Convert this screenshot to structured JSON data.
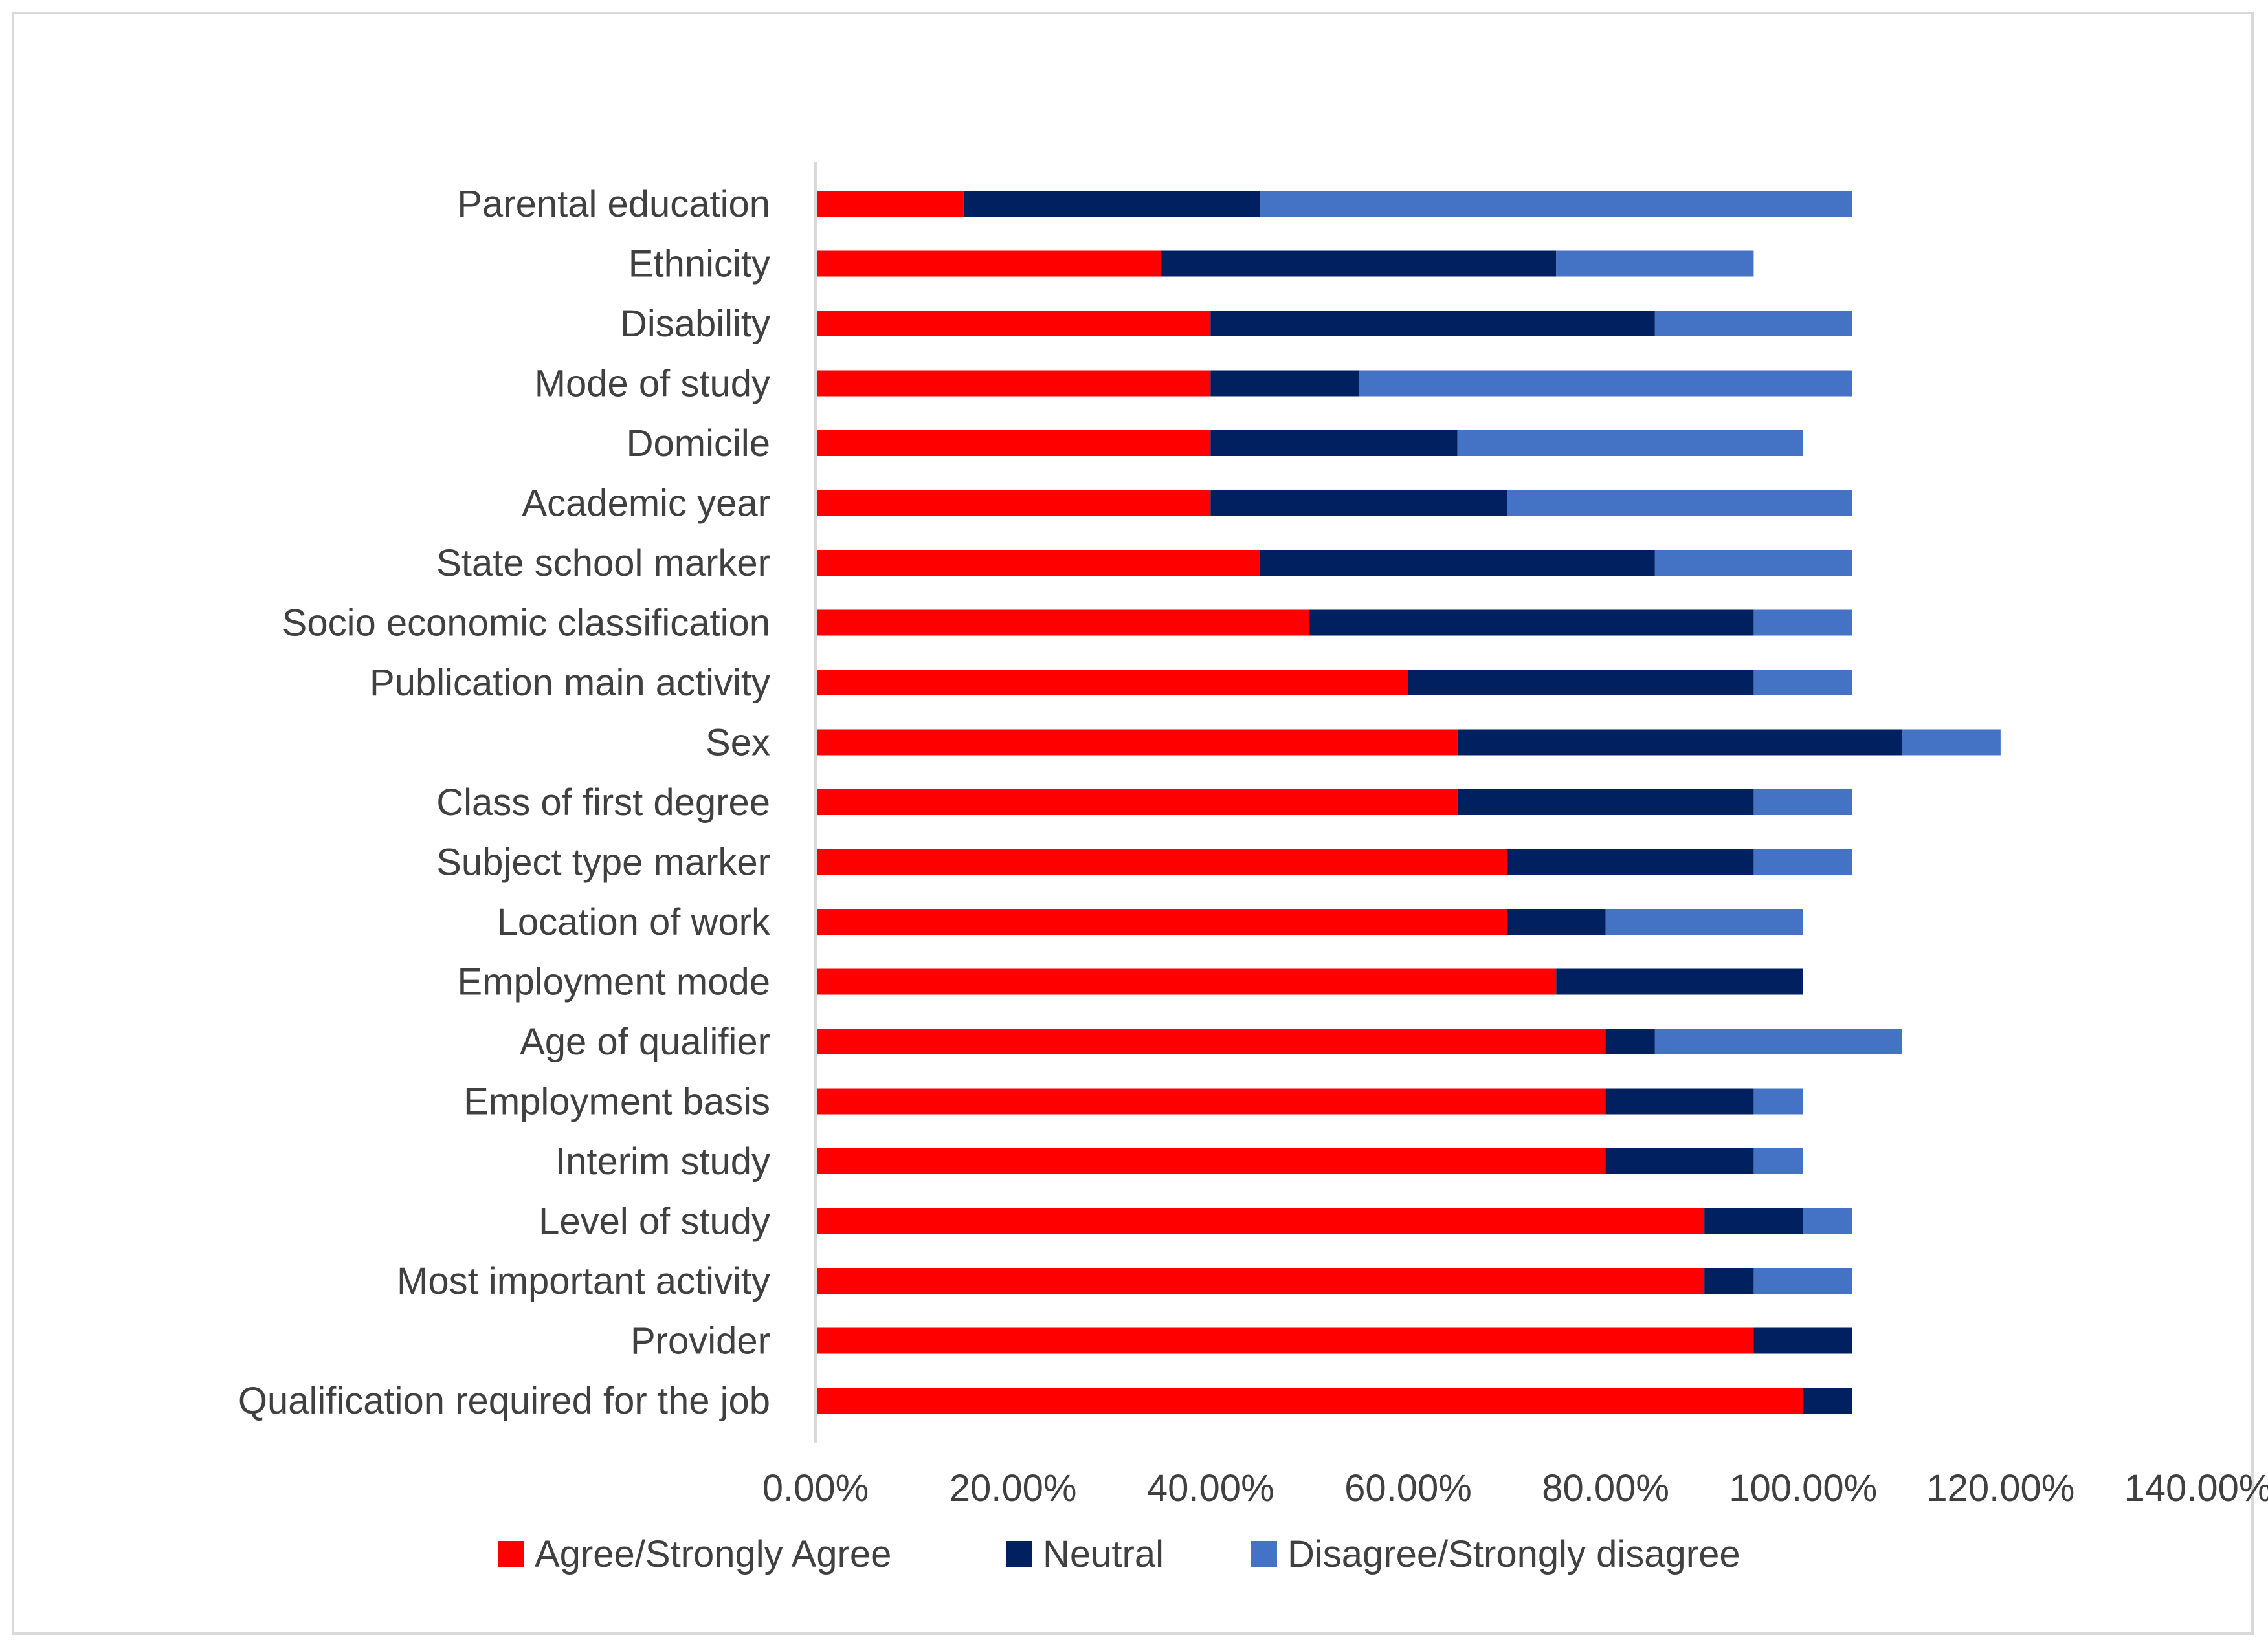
{
  "chart_data": {
    "type": "bar",
    "orientation": "horizontal",
    "stacked": true,
    "title": "",
    "xlabel": "",
    "ylabel": "",
    "xlim": [
      0,
      140
    ],
    "x_ticks": [
      0,
      20,
      40,
      60,
      80,
      100,
      120,
      140
    ],
    "x_tick_labels": [
      "0.00%",
      "20.00%",
      "40.00%",
      "60.00%",
      "80.00%",
      "100.00%",
      "120.00%",
      "140.00%"
    ],
    "grid": false,
    "legend_position": "bottom",
    "categories": [
      "Parental education",
      "Ethnicity",
      "Disability",
      "Mode of study",
      "Domicile",
      "Academic year",
      "State school marker",
      "Socio economic classification",
      "Publication main activity",
      "Sex",
      "Class of first degree",
      "Subject type marker",
      "Location of work",
      "Employment mode",
      "Age of qualifier",
      "Employment basis",
      "Interim study",
      "Level of study",
      "Most important activity",
      "Provider",
      "Qualification required for the job"
    ],
    "series": [
      {
        "name": "Agree/Strongly Agree",
        "color": "#ff0000",
        "values": [
          15,
          35,
          40,
          40,
          40,
          40,
          45,
          50,
          60,
          65,
          65,
          70,
          70,
          75,
          80,
          80,
          80,
          90,
          90,
          95,
          100
        ]
      },
      {
        "name": "Neutral",
        "color": "#002060",
        "values": [
          30,
          40,
          45,
          15,
          25,
          30,
          40,
          45,
          35,
          45,
          30,
          25,
          10,
          25,
          5,
          15,
          15,
          10,
          5,
          10,
          5
        ]
      },
      {
        "name": "Disagree/Strongly disagree",
        "color": "#4472c4",
        "values": [
          60,
          20,
          20,
          50,
          35,
          35,
          20,
          10,
          10,
          10,
          10,
          10,
          20,
          0,
          25,
          5,
          5,
          5,
          10,
          0,
          0
        ]
      }
    ]
  }
}
